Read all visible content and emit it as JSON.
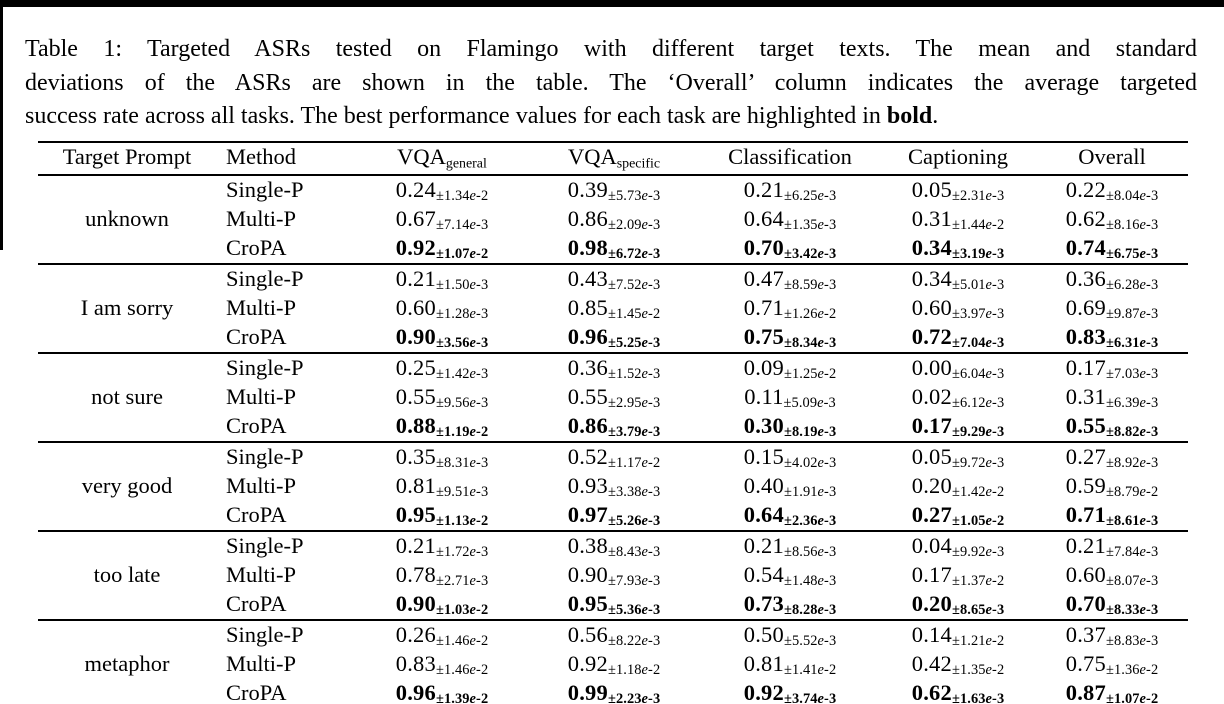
{
  "caption": {
    "line1": "Table 1: Targeted ASRs tested on Flamingo with different target texts. The mean and standard",
    "line2": "deviations of the ASRs are shown in the table. The ‘Overall’ column indicates the average targeted",
    "line3_prefix": "success rate across all tasks. The best performance values for each task are highlighted in ",
    "line3_bold": "bold",
    "line3_suffix": "."
  },
  "table": {
    "headers": {
      "target_prompt": "Target Prompt",
      "method": "Method",
      "vqa_general": {
        "base": "VQA",
        "sub": "general"
      },
      "vqa_specific": {
        "base": "VQA",
        "sub": "specific"
      },
      "classification": "Classification",
      "captioning": "Captioning",
      "overall": "Overall"
    },
    "columns": [
      "Target Prompt",
      "Method",
      "VQA general",
      "VQA specific",
      "Classification",
      "Captioning",
      "Overall"
    ],
    "groups": [
      {
        "target_prompt": "unknown",
        "rows": [
          {
            "method": "Single-P",
            "bold": false,
            "cells": [
              {
                "mean": "0.24",
                "std": "1.34e-2"
              },
              {
                "mean": "0.39",
                "std": "5.73e-3"
              },
              {
                "mean": "0.21",
                "std": "6.25e-3"
              },
              {
                "mean": "0.05",
                "std": "2.31e-3"
              },
              {
                "mean": "0.22",
                "std": "8.04e-3"
              }
            ]
          },
          {
            "method": "Multi-P",
            "bold": false,
            "cells": [
              {
                "mean": "0.67",
                "std": "7.14e-3"
              },
              {
                "mean": "0.86",
                "std": "2.09e-3"
              },
              {
                "mean": "0.64",
                "std": "1.35e-3"
              },
              {
                "mean": "0.31",
                "std": "1.44e-2"
              },
              {
                "mean": "0.62",
                "std": "8.16e-3"
              }
            ]
          },
          {
            "method": "CroPA",
            "bold": true,
            "cells": [
              {
                "mean": "0.92",
                "std": "1.07e-2"
              },
              {
                "mean": "0.98",
                "std": "6.72e-3"
              },
              {
                "mean": "0.70",
                "std": "3.42e-3"
              },
              {
                "mean": "0.34",
                "std": "3.19e-3"
              },
              {
                "mean": "0.74",
                "std": "6.75e-3"
              }
            ]
          }
        ]
      },
      {
        "target_prompt": "I am sorry",
        "rows": [
          {
            "method": "Single-P",
            "bold": false,
            "cells": [
              {
                "mean": "0.21",
                "std": "1.50e-3"
              },
              {
                "mean": "0.43",
                "std": "7.52e-3"
              },
              {
                "mean": "0.47",
                "std": "8.59e-3"
              },
              {
                "mean": "0.34",
                "std": "5.01e-3"
              },
              {
                "mean": "0.36",
                "std": "6.28e-3"
              }
            ]
          },
          {
            "method": "Multi-P",
            "bold": false,
            "cells": [
              {
                "mean": "0.60",
                "std": "1.28e-3"
              },
              {
                "mean": "0.85",
                "std": "1.45e-2"
              },
              {
                "mean": "0.71",
                "std": "1.26e-2"
              },
              {
                "mean": "0.60",
                "std": "3.97e-3"
              },
              {
                "mean": "0.69",
                "std": "9.87e-3"
              }
            ]
          },
          {
            "method": "CroPA",
            "bold": true,
            "cells": [
              {
                "mean": "0.90",
                "std": "3.56e-3"
              },
              {
                "mean": "0.96",
                "std": "5.25e-3"
              },
              {
                "mean": "0.75",
                "std": "8.34e-3"
              },
              {
                "mean": "0.72",
                "std": "7.04e-3"
              },
              {
                "mean": "0.83",
                "std": "6.31e-3"
              }
            ]
          }
        ]
      },
      {
        "target_prompt": "not sure",
        "rows": [
          {
            "method": "Single-P",
            "bold": false,
            "cells": [
              {
                "mean": "0.25",
                "std": "1.42e-3"
              },
              {
                "mean": "0.36",
                "std": "1.52e-3"
              },
              {
                "mean": "0.09",
                "std": "1.25e-2"
              },
              {
                "mean": "0.00",
                "std": "6.04e-3"
              },
              {
                "mean": "0.17",
                "std": "7.03e-3"
              }
            ]
          },
          {
            "method": "Multi-P",
            "bold": false,
            "cells": [
              {
                "mean": "0.55",
                "std": "9.56e-3"
              },
              {
                "mean": "0.55",
                "std": "2.95e-3"
              },
              {
                "mean": "0.11",
                "std": "5.09e-3"
              },
              {
                "mean": "0.02",
                "std": "6.12e-3"
              },
              {
                "mean": "0.31",
                "std": "6.39e-3"
              }
            ]
          },
          {
            "method": "CroPA",
            "bold": true,
            "cells": [
              {
                "mean": "0.88",
                "std": "1.19e-2"
              },
              {
                "mean": "0.86",
                "std": "3.79e-3"
              },
              {
                "mean": "0.30",
                "std": "8.19e-3"
              },
              {
                "mean": "0.17",
                "std": "9.29e-3"
              },
              {
                "mean": "0.55",
                "std": "8.82e-3"
              }
            ]
          }
        ]
      },
      {
        "target_prompt": "very good",
        "rows": [
          {
            "method": "Single-P",
            "bold": false,
            "cells": [
              {
                "mean": "0.35",
                "std": "8.31e-3"
              },
              {
                "mean": "0.52",
                "std": "1.17e-2"
              },
              {
                "mean": "0.15",
                "std": "4.02e-3"
              },
              {
                "mean": "0.05",
                "std": "9.72e-3"
              },
              {
                "mean": "0.27",
                "std": "8.92e-3"
              }
            ]
          },
          {
            "method": "Multi-P",
            "bold": false,
            "cells": [
              {
                "mean": "0.81",
                "std": "9.51e-3"
              },
              {
                "mean": "0.93",
                "std": "3.38e-3"
              },
              {
                "mean": "0.40",
                "std": "1.91e-3"
              },
              {
                "mean": "0.20",
                "std": "1.42e-2"
              },
              {
                "mean": "0.59",
                "std": "8.79e-2"
              }
            ]
          },
          {
            "method": "CroPA",
            "bold": true,
            "cells": [
              {
                "mean": "0.95",
                "std": "1.13e-2"
              },
              {
                "mean": "0.97",
                "std": "5.26e-3"
              },
              {
                "mean": "0.64",
                "std": "2.36e-3"
              },
              {
                "mean": "0.27",
                "std": "1.05e-2"
              },
              {
                "mean": "0.71",
                "std": "8.61e-3"
              }
            ]
          }
        ]
      },
      {
        "target_prompt": "too late",
        "rows": [
          {
            "method": "Single-P",
            "bold": false,
            "cells": [
              {
                "mean": "0.21",
                "std": "1.72e-3"
              },
              {
                "mean": "0.38",
                "std": "8.43e-3"
              },
              {
                "mean": "0.21",
                "std": "8.56e-3"
              },
              {
                "mean": "0.04",
                "std": "9.92e-3"
              },
              {
                "mean": "0.21",
                "std": "7.84e-3"
              }
            ]
          },
          {
            "method": "Multi-P",
            "bold": false,
            "cells": [
              {
                "mean": "0.78",
                "std": "2.71e-3"
              },
              {
                "mean": "0.90",
                "std": "7.93e-3"
              },
              {
                "mean": "0.54",
                "std": "1.48e-3"
              },
              {
                "mean": "0.17",
                "std": "1.37e-2"
              },
              {
                "mean": "0.60",
                "std": "8.07e-3"
              }
            ]
          },
          {
            "method": "CroPA",
            "bold": true,
            "cells": [
              {
                "mean": "0.90",
                "std": "1.03e-2"
              },
              {
                "mean": "0.95",
                "std": "5.36e-3"
              },
              {
                "mean": "0.73",
                "std": "8.28e-3"
              },
              {
                "mean": "0.20",
                "std": "8.65e-3"
              },
              {
                "mean": "0.70",
                "std": "8.33e-3"
              }
            ]
          }
        ]
      },
      {
        "target_prompt": "metaphor",
        "rows": [
          {
            "method": "Single-P",
            "bold": false,
            "cells": [
              {
                "mean": "0.26",
                "std": "1.46e-2"
              },
              {
                "mean": "0.56",
                "std": "8.22e-3"
              },
              {
                "mean": "0.50",
                "std": "5.52e-3"
              },
              {
                "mean": "0.14",
                "std": "1.21e-2"
              },
              {
                "mean": "0.37",
                "std": "8.83e-3"
              }
            ]
          },
          {
            "method": "Multi-P",
            "bold": false,
            "cells": [
              {
                "mean": "0.83",
                "std": "1.46e-2"
              },
              {
                "mean": "0.92",
                "std": "1.18e-2"
              },
              {
                "mean": "0.81",
                "std": "1.41e-2"
              },
              {
                "mean": "0.42",
                "std": "1.35e-2"
              },
              {
                "mean": "0.75",
                "std": "1.36e-2"
              }
            ]
          },
          {
            "method": "CroPA",
            "bold": true,
            "cells": [
              {
                "mean": "0.96",
                "std": "1.39e-2"
              },
              {
                "mean": "0.99",
                "std": "2.23e-3"
              },
              {
                "mean": "0.92",
                "std": "3.74e-3"
              },
              {
                "mean": "0.62",
                "std": "1.63e-3"
              },
              {
                "mean": "0.87",
                "std": "1.07e-2"
              }
            ]
          }
        ]
      }
    ]
  }
}
